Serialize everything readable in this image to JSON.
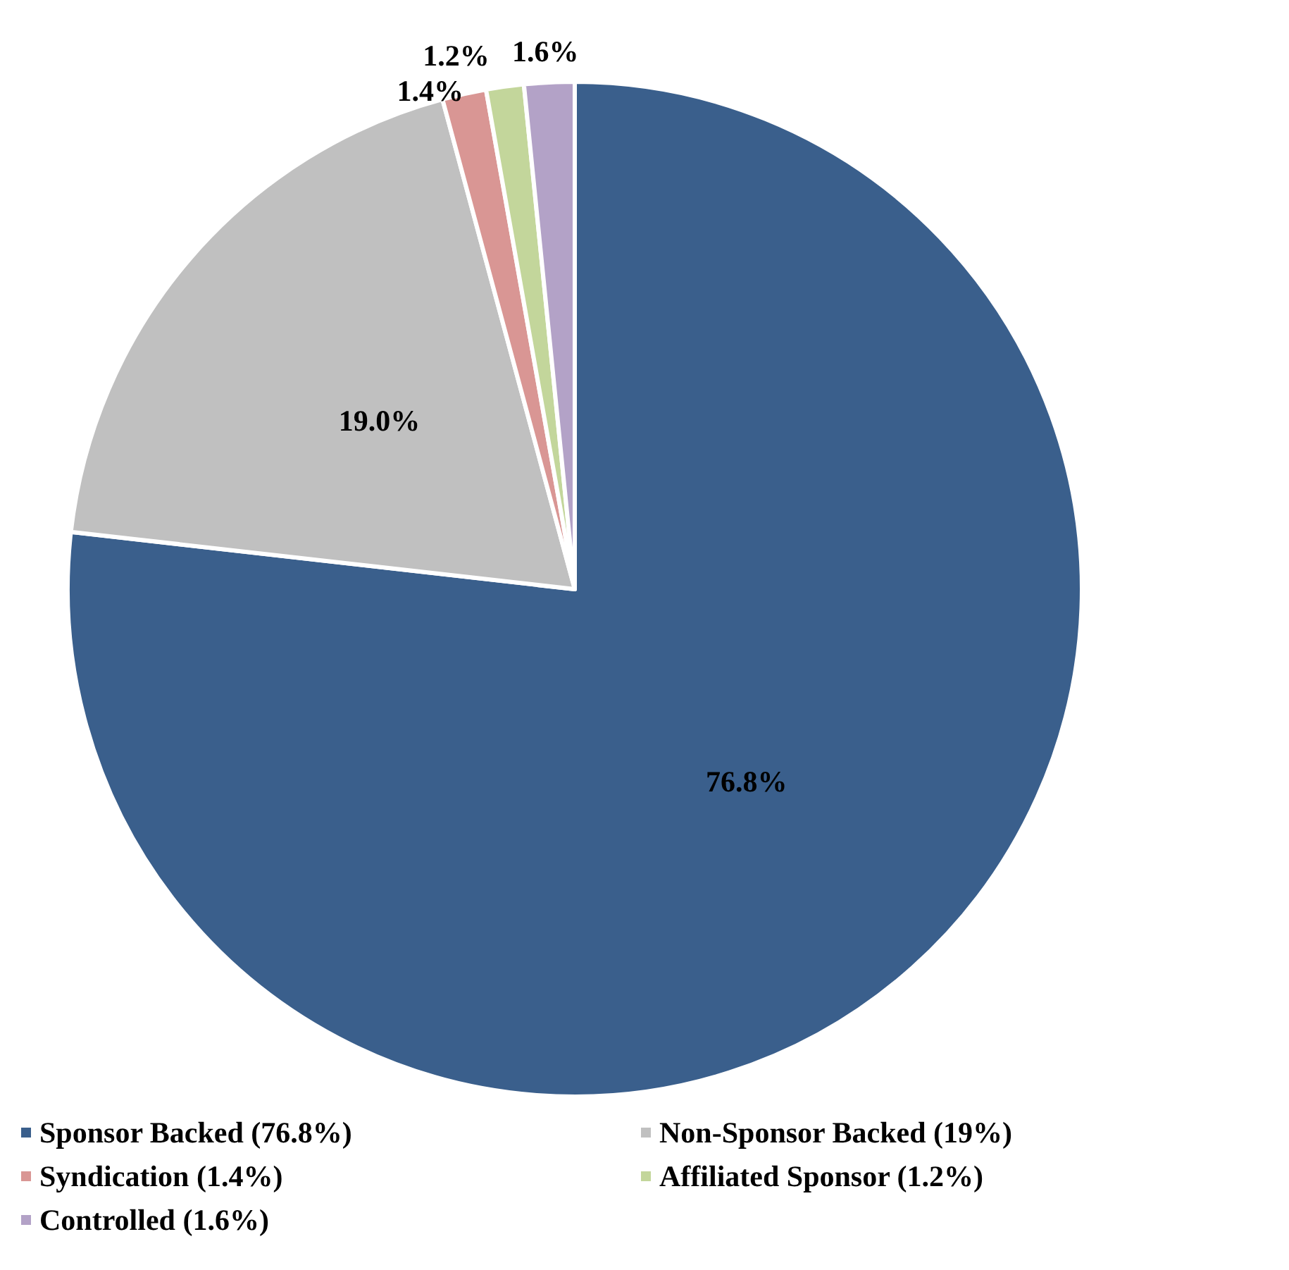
{
  "chart_data": {
    "type": "pie",
    "categories": [
      "Sponsor Backed (76.8%)",
      "Non-Sponsor Backed (19%)",
      "Syndication (1.4%)",
      "Affiliated Sponsor (1.2%)",
      "Controlled (1.6%)"
    ],
    "values": [
      76.8,
      19.0,
      1.4,
      1.2,
      1.6
    ],
    "value_labels": [
      "76.8%",
      "19.0%",
      "1.4%",
      "1.2%",
      "1.6%"
    ],
    "colors": [
      "#3a5f8c",
      "#c0c0c0",
      "#d99694",
      "#c3d69b",
      "#b3a2c7"
    ],
    "legend": "bottom"
  }
}
